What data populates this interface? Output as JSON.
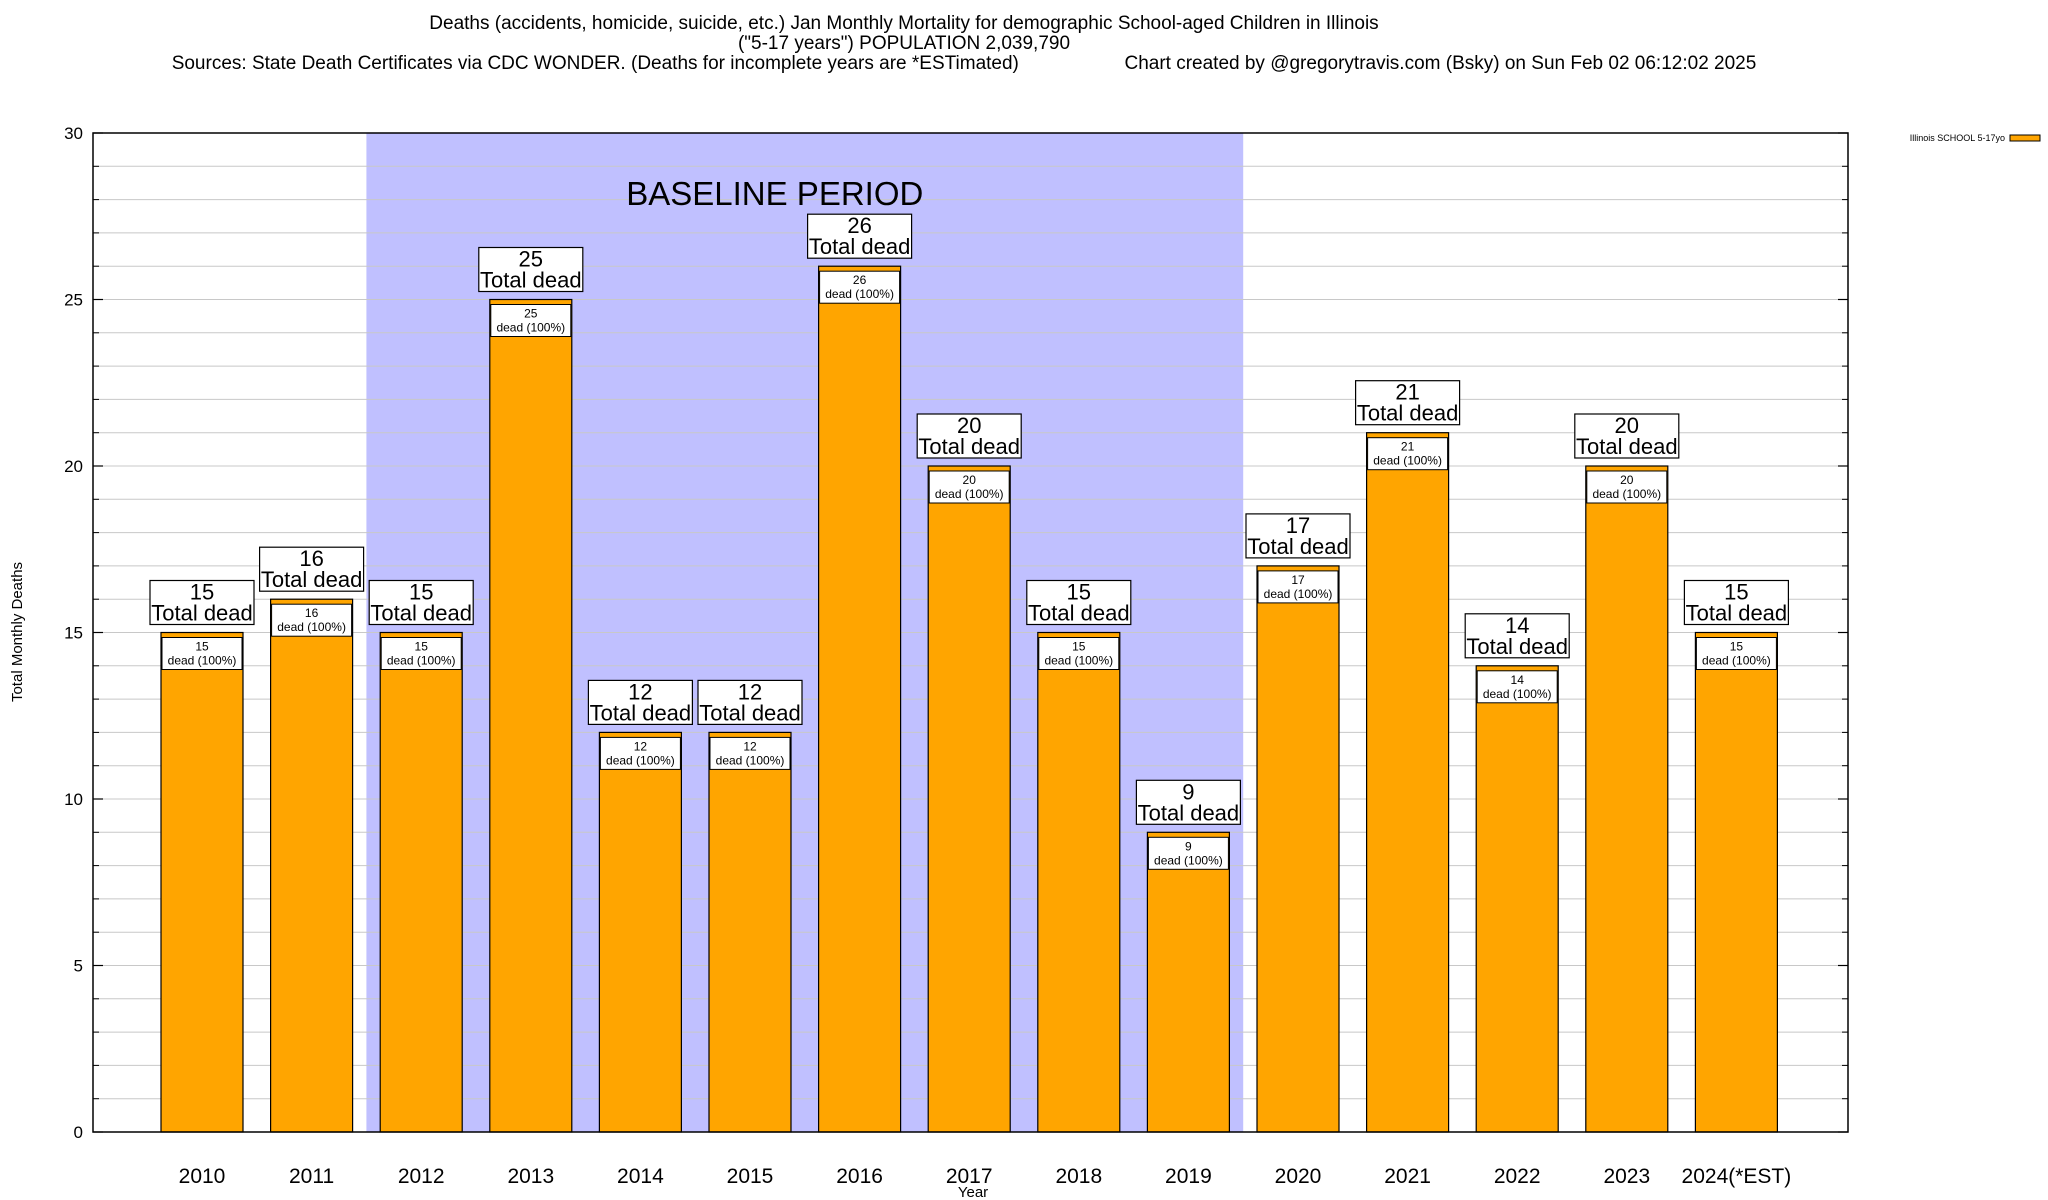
{
  "chart_data": {
    "type": "bar",
    "title": "Deaths (accidents, homicide, suicide, etc.) Jan Monthly Mortality for demographic School-aged Children in Illinois",
    "subtitle": "(\"5-17 years\") POPULATION 2,039,790",
    "source": "Sources: State Death Certificates via CDC WONDER. (Deaths for incomplete years are *ESTimated)",
    "credit": "Chart created by @gregorytravis.com (Bsky) on Sun Feb 02 06:12:02 2025",
    "xlabel": "Year",
    "ylabel": "Total Monthly Deaths",
    "ylim": [
      0,
      30
    ],
    "yticks": [
      0,
      5,
      10,
      15,
      20,
      25,
      30
    ],
    "minor_grid_step": 1,
    "grid": true,
    "legend": {
      "placement": "top-right-outside",
      "entries": [
        {
          "name": "Illinois SCHOOL 5-17yo",
          "color": "#FFA500"
        }
      ]
    },
    "categories": [
      "2010",
      "2011",
      "2012",
      "2013",
      "2014",
      "2015",
      "2016",
      "2017",
      "2018",
      "2019",
      "2020",
      "2021",
      "2022",
      "2023",
      "2024(*EST)"
    ],
    "series": [
      {
        "name": "Illinois SCHOOL 5-17yo",
        "color": "#FFA500",
        "values": [
          15,
          16,
          15,
          25,
          12,
          12,
          26,
          20,
          15,
          9,
          17,
          21,
          14,
          20,
          15
        ]
      }
    ],
    "top_label_suffix": "Total dead",
    "inner_label_suffix": "dead (100%)",
    "annotation": {
      "text": "BASELINE PERIOD",
      "shaded_range": [
        "2012",
        "2019"
      ],
      "color": "#C0C0FF"
    },
    "colors": {
      "bar": "#FFA500",
      "baseline_band": "#C0C0FF",
      "grid": "#C8C8C8",
      "axis": "#000000"
    }
  }
}
